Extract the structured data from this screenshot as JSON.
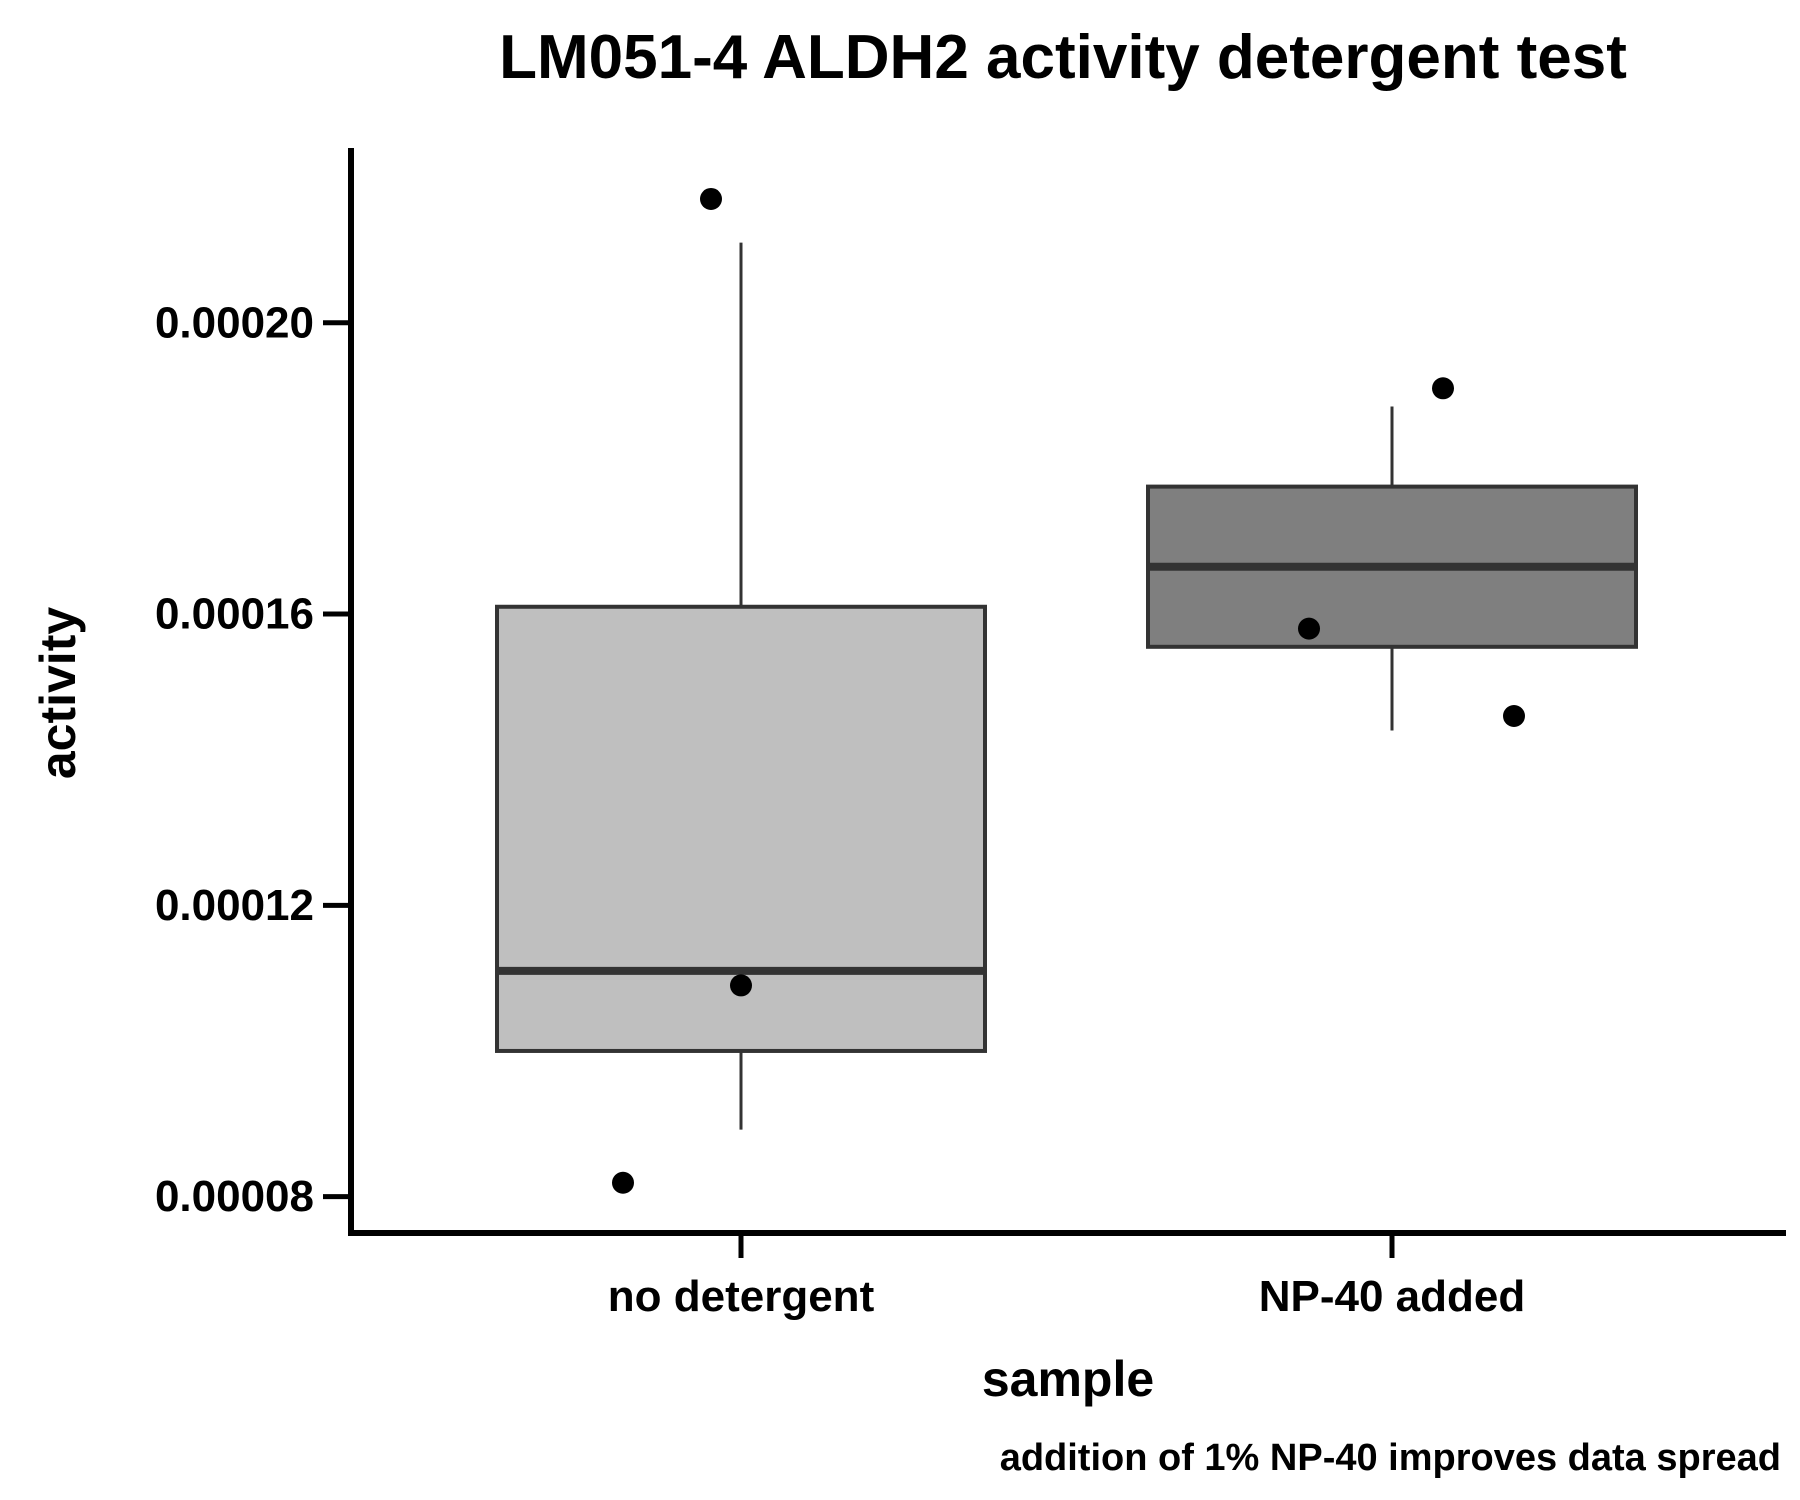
{
  "chart_data": {
    "type": "box",
    "title": "LM051-4 ALDH2 activity detergent test",
    "xlabel": "sample",
    "ylabel": "activity",
    "caption": "addition of 1% NP-40 improves data spread",
    "categories": [
      "no detergent",
      "NP-40 added"
    ],
    "y_ticks": [
      8e-05,
      0.00012,
      0.00016,
      0.0002
    ],
    "y_tick_labels": [
      "0.00008",
      "0.00012",
      "0.00016",
      "0.00020"
    ],
    "ylim": [
      7.5e-05,
      0.000224
    ],
    "grid": false,
    "legend": "none",
    "series": [
      {
        "category": "no detergent",
        "whisker_low": 8.92e-05,
        "q1": 0.0001,
        "median": 0.000111,
        "q3": 0.000161,
        "whisker_high": 0.000211,
        "box_color": "#bfbfbf",
        "points": [
          0.000217,
          0.000109,
          8.19e-05
        ]
      },
      {
        "category": "NP-40 added",
        "whisker_low": 0.000144,
        "q1": 0.0001555,
        "median": 0.0001665,
        "q3": 0.0001775,
        "whisker_high": 0.0001885,
        "box_color": "#7f7f7f",
        "points": [
          0.000191,
          0.000158,
          0.000146
        ]
      }
    ],
    "point_color": "#000000",
    "outline_color": "#333333"
  }
}
